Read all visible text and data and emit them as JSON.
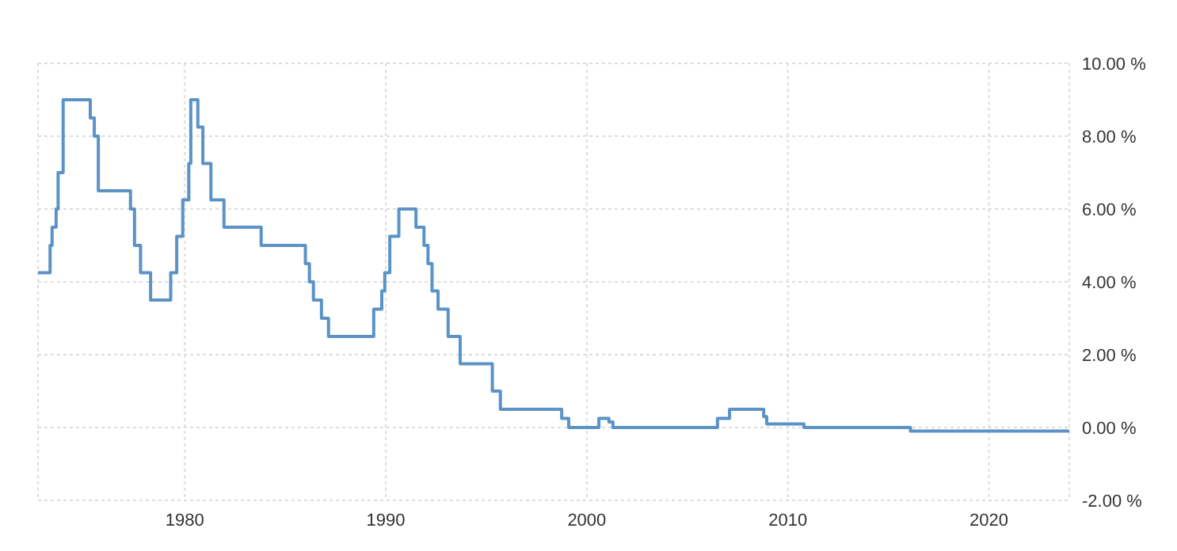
{
  "chart_data": {
    "type": "step",
    "xlim": [
      1972.7,
      2024
    ],
    "xticks": [
      1980,
      1990,
      2000,
      2010,
      2020
    ],
    "ylim": [
      -2,
      10
    ],
    "yticks": [
      {
        "value": -2,
        "label": "-2.00 %"
      },
      {
        "value": 0,
        "label": "0.00 %"
      },
      {
        "value": 2,
        "label": "2.00 %"
      },
      {
        "value": 4,
        "label": "4.00 %"
      },
      {
        "value": 6,
        "label": "6.00 %"
      },
      {
        "value": 8,
        "label": "8.00 %"
      },
      {
        "value": 10,
        "label": "10.00 %"
      }
    ],
    "grid": true,
    "marker": "none",
    "line_style": "solid",
    "series": [
      {
        "color": "#5b93c7",
        "x": [
          1972.7,
          1973.3,
          1973.4,
          1973.6,
          1973.7,
          1973.95,
          1975.3,
          1975.5,
          1975.7,
          1977.3,
          1977.5,
          1977.8,
          1978.3,
          1979.3,
          1979.6,
          1979.9,
          1980.2,
          1980.3,
          1980.65,
          1980.9,
          1981.3,
          1981.95,
          1983.8,
          1986.0,
          1986.2,
          1986.4,
          1986.8,
          1987.15,
          1989.4,
          1989.8,
          1989.95,
          1990.2,
          1990.65,
          1991.5,
          1991.9,
          1992.1,
          1992.3,
          1992.6,
          1993.1,
          1993.7,
          1995.3,
          1995.7,
          1998.75,
          1999.1,
          2000.6,
          2001.1,
          2001.3,
          2006.5,
          2007.1,
          2008.8,
          2008.95,
          2010.8,
          2016.1,
          2024
        ],
        "values": [
          4.25,
          5.0,
          5.5,
          6.0,
          7.0,
          9.0,
          8.5,
          8.0,
          6.5,
          6.0,
          5.0,
          4.25,
          3.5,
          4.25,
          5.25,
          6.25,
          7.25,
          9.0,
          8.25,
          7.25,
          6.25,
          5.5,
          5.0,
          4.5,
          4.0,
          3.5,
          3.0,
          2.5,
          3.25,
          3.75,
          4.25,
          5.25,
          6.0,
          5.5,
          5.0,
          4.5,
          3.75,
          3.25,
          2.5,
          1.75,
          1.0,
          0.5,
          0.25,
          0.0,
          0.25,
          0.15,
          0.0,
          0.25,
          0.5,
          0.3,
          0.1,
          0.0,
          -0.1,
          -0.1
        ]
      }
    ]
  }
}
